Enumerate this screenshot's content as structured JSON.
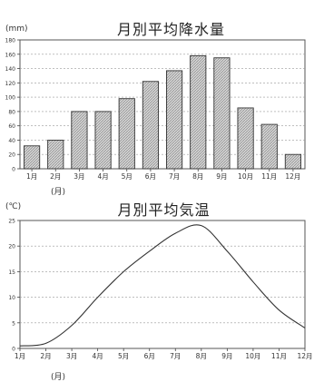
{
  "chart_data": [
    {
      "type": "bar",
      "title": "月別平均降水量",
      "unit_label": "(mm)",
      "x_unit_label": "(月)",
      "categories": [
        "1月",
        "2月",
        "3月",
        "4月",
        "5月",
        "6月",
        "7月",
        "8月",
        "9月",
        "10月",
        "11月",
        "12月"
      ],
      "values": [
        32,
        40,
        80,
        80,
        98,
        122,
        137,
        158,
        155,
        85,
        62,
        20
      ],
      "ylim": [
        0,
        180
      ],
      "yticks": [
        "0",
        "20",
        "40",
        "60",
        "80",
        "100",
        "120",
        "140",
        "160",
        "180"
      ],
      "grid": true,
      "bar_fill": "#d4d4d4",
      "bar_stroke": "#333333"
    },
    {
      "type": "line",
      "title": "月別平均気温",
      "unit_label": "(℃)",
      "x_unit_label": "(月)",
      "categories": [
        "1月",
        "2月",
        "3月",
        "4月",
        "5月",
        "6月",
        "7月",
        "8月",
        "9月",
        "10月",
        "11月",
        "12月"
      ],
      "values": [
        0.5,
        1,
        4.5,
        10,
        15,
        19,
        22.5,
        24,
        19,
        13,
        7.5,
        4
      ],
      "ylim": [
        0,
        25
      ],
      "yticks": [
        "0",
        "5",
        "10",
        "15",
        "20",
        "25"
      ],
      "grid": true,
      "line_color": "#333333"
    }
  ]
}
